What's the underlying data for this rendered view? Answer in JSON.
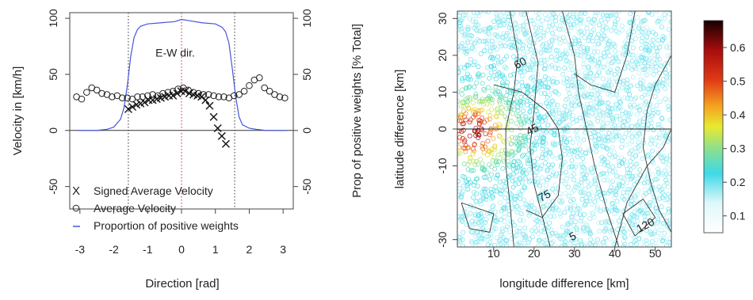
{
  "chart_data": [
    {
      "type": "line",
      "xlabel": "Direction [rad]",
      "ylabel": "Velocity in [km/h]",
      "ylabel_right": "Prop of positive weights [% Total]",
      "xlim": [
        -3.3,
        3.3
      ],
      "ylim": [
        -70,
        105
      ],
      "x_ticks": [
        -3,
        -2,
        -1,
        0,
        1,
        2,
        3
      ],
      "y_ticks": [
        0,
        50,
        100
      ],
      "y_ticks_left": [
        -50,
        0,
        50,
        100
      ],
      "y_ticks_right": [
        -50,
        0,
        50,
        100
      ],
      "tick_labels_left": [
        "-50",
        "0",
        "50",
        "100"
      ],
      "tick_labels_right": [
        "-50",
        "0",
        "50",
        "100"
      ],
      "annotation": "E-W dir.",
      "annotation_color": "#dd2222",
      "vlines": [
        {
          "x": -1.57,
          "color": "#333333",
          "style": "dotted"
        },
        {
          "x": 0,
          "color": "#dd2222",
          "style": "dotted"
        },
        {
          "x": 1.57,
          "color": "#333333",
          "style": "dotted"
        }
      ],
      "hline": 0,
      "legend_position": "bottom-left",
      "series": [
        {
          "name": "Signed Average Velocity",
          "marker": "x",
          "color": "#111111",
          "x": [
            -1.57,
            -1.45,
            -1.33,
            -1.21,
            -1.09,
            -0.97,
            -0.85,
            -0.73,
            -0.61,
            -0.49,
            -0.37,
            -0.25,
            -0.13,
            -0.01,
            0.11,
            0.23,
            0.35,
            0.47,
            0.59,
            0.71,
            0.83,
            0.95,
            1.07,
            1.19,
            1.31
          ],
          "y": [
            19,
            21,
            23,
            24,
            25,
            27,
            27,
            28,
            29,
            30,
            31,
            31,
            33,
            35,
            35,
            33,
            32,
            31,
            30,
            27,
            22,
            12,
            2,
            -5,
            -12
          ]
        },
        {
          "name": "Average Velocity",
          "marker": "o",
          "color": "#222222",
          "x": [
            -3.1,
            -2.95,
            -2.8,
            -2.65,
            -2.5,
            -2.35,
            -2.2,
            -2.05,
            -1.9,
            -1.75,
            -1.6,
            -1.45,
            -1.3,
            -1.15,
            -1.0,
            -0.85,
            -0.7,
            -0.55,
            -0.4,
            -0.25,
            -0.1,
            0.05,
            0.2,
            0.35,
            0.5,
            0.65,
            0.8,
            0.95,
            1.1,
            1.25,
            1.4,
            1.55,
            1.7,
            1.85,
            2.0,
            2.15,
            2.3,
            2.45,
            2.6,
            2.75,
            2.9,
            3.05
          ],
          "y": [
            30,
            28,
            34,
            38,
            36,
            33,
            32,
            30,
            31,
            29,
            29,
            28,
            30,
            30,
            31,
            32,
            31,
            33,
            34,
            35,
            37,
            38,
            36,
            34,
            33,
            32,
            32,
            31,
            30,
            30,
            29,
            31,
            32,
            35,
            40,
            45,
            47,
            38,
            35,
            32,
            30,
            29
          ]
        },
        {
          "name": "Proportion of positive weights",
          "color": "#4455dd",
          "x": [
            -3.1,
            -2.5,
            -2.2,
            -2.0,
            -1.8,
            -1.7,
            -1.6,
            -1.5,
            -1.4,
            -1.3,
            -1.2,
            -1.0,
            -0.6,
            -0.2,
            0,
            0.2,
            0.6,
            1.0,
            1.2,
            1.3,
            1.4,
            1.5,
            1.6,
            1.7,
            1.8,
            2.0,
            2.2,
            2.5,
            3.1
          ],
          "y": [
            0,
            0,
            1,
            3,
            10,
            20,
            40,
            66,
            83,
            90,
            93,
            95,
            96,
            97,
            99,
            98,
            96,
            95,
            92,
            88,
            78,
            55,
            30,
            12,
            5,
            2,
            1,
            0,
            0
          ]
        }
      ]
    },
    {
      "type": "heatmap",
      "xlabel": "longitude difference [km]",
      "ylabel": "latitude difference [km]",
      "xlim": [
        1,
        54
      ],
      "ylim": [
        -32,
        32
      ],
      "x_ticks": [
        10,
        20,
        30,
        40,
        50
      ],
      "y_ticks": [
        -30,
        -10,
        0,
        10,
        20,
        30
      ],
      "colorbar_ticks": [
        0.1,
        0.2,
        0.3,
        0.4,
        0.5,
        0.6
      ],
      "colorbar_range": [
        0.05,
        0.68
      ],
      "contour_labels": [
        {
          "label": "60",
          "x": 17,
          "y": 17
        },
        {
          "label": "45",
          "x": 20,
          "y": -1
        },
        {
          "label": "75",
          "x": 23,
          "y": -19
        },
        {
          "label": "120",
          "x": 48,
          "y": -27
        },
        {
          "label": "5",
          "x": 30,
          "y": -30
        }
      ],
      "contours": [
        [
          [
            14,
            32
          ],
          [
            16,
            20
          ],
          [
            15,
            10
          ],
          [
            13,
            0
          ],
          [
            13,
            -10
          ],
          [
            14,
            -20
          ],
          [
            15,
            -32
          ]
        ],
        [
          [
            18,
            32
          ],
          [
            21,
            18
          ],
          [
            20,
            5
          ],
          [
            19,
            -5
          ],
          [
            20,
            -15
          ],
          [
            24,
            -32
          ]
        ],
        [
          [
            10,
            12
          ],
          [
            17,
            10
          ],
          [
            23,
            5
          ],
          [
            26,
            0
          ],
          [
            27,
            -8
          ],
          [
            26,
            -18
          ],
          [
            22,
            -24
          ],
          [
            18,
            -22
          ]
        ],
        [
          [
            27,
            32
          ],
          [
            30,
            20
          ],
          [
            31,
            10
          ],
          [
            33,
            0
          ],
          [
            35,
            -10
          ],
          [
            38,
            -22
          ],
          [
            41,
            -32
          ]
        ],
        [
          [
            30,
            15
          ],
          [
            34,
            12
          ],
          [
            40,
            10
          ],
          [
            43,
            20
          ],
          [
            45,
            32
          ]
        ],
        [
          [
            40,
            -32
          ],
          [
            43,
            -20
          ],
          [
            48,
            -10
          ],
          [
            52,
            -5
          ],
          [
            54,
            0
          ]
        ],
        [
          [
            54,
            20
          ],
          [
            50,
            12
          ],
          [
            48,
            5
          ],
          [
            47,
            -5
          ],
          [
            49,
            -15
          ],
          [
            51,
            -22
          ],
          [
            54,
            -28
          ]
        ],
        [
          [
            2,
            -20
          ],
          [
            10,
            -23
          ],
          [
            9,
            -28
          ],
          [
            4,
            -27
          ],
          [
            2,
            -20
          ]
        ],
        [
          [
            42,
            -23
          ],
          [
            47,
            -19
          ],
          [
            50,
            -24
          ],
          [
            45,
            -29
          ],
          [
            42,
            -23
          ]
        ]
      ]
    }
  ]
}
